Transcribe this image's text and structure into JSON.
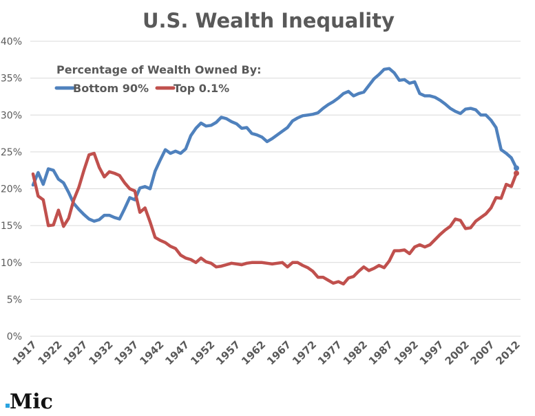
{
  "chart_data": {
    "type": "line",
    "title": "U.S. Wealth Inequality",
    "legend_title": "Percentage of Wealth Owned By:",
    "legend_position": "top-left",
    "grid": true,
    "xlim": [
      1917,
      2012
    ],
    "ylim": [
      0,
      40
    ],
    "y_ticks": [
      "0%",
      "5%",
      "10%",
      "15%",
      "20%",
      "25%",
      "30%",
      "35%",
      "40%"
    ],
    "x_ticks": [
      "1917",
      "1922",
      "1927",
      "1932",
      "1937",
      "1942",
      "1947",
      "1952",
      "1957",
      "1962",
      "1967",
      "1972",
      "1977",
      "1982",
      "1987",
      "1992",
      "1997",
      "2002",
      "2007",
      "2012"
    ],
    "x_start": 1917,
    "series": [
      {
        "name": "Bottom 90%",
        "color": "#4F81BD",
        "values": [
          20.5,
          22.2,
          20.6,
          22.7,
          22.5,
          21.3,
          20.8,
          19.5,
          18.0,
          17.2,
          16.5,
          15.9,
          15.6,
          15.8,
          16.4,
          16.4,
          16.1,
          15.9,
          17.3,
          18.8,
          18.5,
          20.1,
          20.3,
          20.0,
          22.4,
          23.9,
          25.3,
          24.8,
          25.1,
          24.8,
          25.4,
          27.2,
          28.2,
          28.9,
          28.5,
          28.6,
          29.0,
          29.7,
          29.5,
          29.1,
          28.8,
          28.2,
          28.3,
          27.5,
          27.3,
          27.0,
          26.4,
          26.8,
          27.3,
          27.8,
          28.3,
          29.2,
          29.6,
          29.9,
          30.0,
          30.1,
          30.3,
          30.9,
          31.4,
          31.8,
          32.3,
          32.9,
          33.2,
          32.6,
          32.9,
          33.1,
          34.0,
          34.9,
          35.5,
          36.2,
          36.3,
          35.7,
          34.7,
          34.8,
          34.3,
          34.5,
          32.9,
          32.6,
          32.6,
          32.4,
          32.0,
          31.5,
          30.9,
          30.5,
          30.2,
          30.8,
          30.9,
          30.7,
          30.0,
          30.0,
          29.3,
          28.3,
          25.3,
          24.8,
          24.2,
          22.8
        ]
      },
      {
        "name": "Top 0.1%",
        "color": "#C0504D",
        "values": [
          22.0,
          19.0,
          18.5,
          15.0,
          15.1,
          17.1,
          14.9,
          16.0,
          18.5,
          20.2,
          22.5,
          24.6,
          24.8,
          22.9,
          21.6,
          22.3,
          22.1,
          21.8,
          20.8,
          20.0,
          19.7,
          16.8,
          17.4,
          15.5,
          13.4,
          13.0,
          12.7,
          12.2,
          11.9,
          11.0,
          10.6,
          10.4,
          10.0,
          10.6,
          10.1,
          9.9,
          9.4,
          9.5,
          9.7,
          9.9,
          9.8,
          9.7,
          9.9,
          10.0,
          10.0,
          10.0,
          9.9,
          9.8,
          9.9,
          10.0,
          9.4,
          10.0,
          10.0,
          9.6,
          9.3,
          8.8,
          8.0,
          8.0,
          7.6,
          7.2,
          7.4,
          7.1,
          7.9,
          8.1,
          8.8,
          9.4,
          8.9,
          9.2,
          9.6,
          9.3,
          10.2,
          11.6,
          11.6,
          11.7,
          11.2,
          12.1,
          12.4,
          12.1,
          12.4,
          13.1,
          13.8,
          14.4,
          14.9,
          15.9,
          15.7,
          14.6,
          14.7,
          15.6,
          16.1,
          16.6,
          17.4,
          18.8,
          18.7,
          20.6,
          20.3,
          22.1
        ]
      }
    ]
  },
  "logo": {
    "text": "Mic",
    "dot_color": "#2aa3e0"
  }
}
